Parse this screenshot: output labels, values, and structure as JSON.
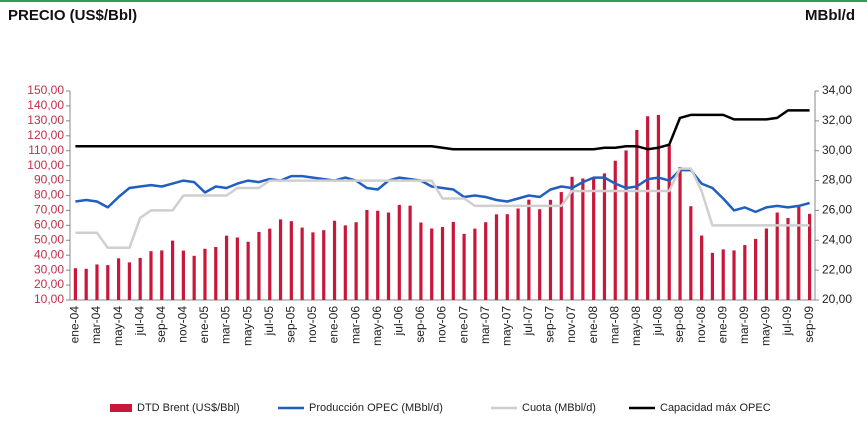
{
  "chart_data": {
    "type": "combo",
    "title": "PRECIO (US$/Bbl)",
    "y2_title": "MBbl/d",
    "categories": [
      "ene-04",
      null,
      "mar-04",
      null,
      "may-04",
      null,
      "jul-04",
      null,
      "sep-04",
      null,
      "nov-04",
      null,
      "ene-05",
      null,
      "mar-05",
      null,
      "may-05",
      null,
      "jul-05",
      null,
      "sep-05",
      null,
      "nov-05",
      null,
      "ene-06",
      null,
      "mar-06",
      null,
      "may-06",
      null,
      "jul-06",
      null,
      "sep-06",
      null,
      "nov-06",
      null,
      "ene-07",
      null,
      "mar-07",
      null,
      "may-07",
      null,
      "jul-07",
      null,
      "sep-07",
      null,
      "nov-07",
      null,
      "ene-08",
      null,
      "mar-08",
      null,
      "may-08",
      null,
      "jul-08",
      null,
      "sep-08",
      null,
      "nov-08",
      null,
      "ene-09",
      null,
      "mar-09",
      null,
      "may-09",
      null,
      "jul-09",
      null,
      "sep-09"
    ],
    "series": [
      {
        "name": "DTD Brent (US$/Bbl)",
        "type": "bar",
        "axis": "y",
        "color": "#c8173a",
        "values": [
          31.3,
          30.9,
          33.8,
          33.4,
          37.9,
          35.2,
          38.2,
          42.7,
          43.2,
          49.8,
          43.1,
          39.6,
          44.3,
          45.5,
          53.1,
          51.9,
          49.0,
          55.6,
          57.8,
          64.0,
          62.8,
          58.5,
          55.3,
          56.8,
          63.1,
          60.0,
          62.1,
          70.3,
          69.8,
          68.6,
          73.7,
          73.2,
          61.9,
          57.9,
          58.9,
          62.3,
          54.3,
          57.8,
          62.1,
          67.4,
          67.5,
          71.3,
          77.2,
          70.8,
          77.1,
          82.3,
          92.5,
          91.4,
          92.0,
          94.8,
          103.3,
          110.2,
          123.9,
          133.1,
          133.9,
          113.9,
          99.1,
          72.8,
          53.2,
          41.6,
          43.9,
          43.2,
          46.8,
          50.9,
          57.9,
          68.6,
          64.9,
          72.5,
          67.7
        ]
      },
      {
        "name": "Producción OPEC (MBbl/d)",
        "type": "line",
        "axis": "y2",
        "color": "#1f5fbf",
        "values": [
          26.6,
          26.7,
          26.6,
          26.2,
          26.9,
          27.5,
          27.6,
          27.7,
          27.6,
          27.8,
          28.0,
          27.9,
          27.2,
          27.6,
          27.5,
          27.8,
          28.0,
          27.9,
          28.1,
          28.0,
          28.3,
          28.3,
          28.2,
          28.1,
          28.0,
          28.2,
          28.0,
          27.5,
          27.4,
          28.0,
          28.2,
          28.1,
          28.0,
          27.6,
          27.5,
          27.4,
          26.9,
          27.0,
          26.9,
          26.7,
          26.6,
          26.8,
          27.0,
          26.9,
          27.4,
          27.6,
          27.5,
          27.9,
          28.2,
          28.2,
          27.8,
          27.5,
          27.6,
          28.1,
          28.2,
          28.0,
          28.7,
          28.7,
          27.8,
          27.5,
          26.8,
          26.0,
          26.2,
          25.9,
          26.2,
          26.3,
          26.2,
          26.3,
          26.5
        ]
      },
      {
        "name": "Cuota (MBbl/d)",
        "type": "line",
        "axis": "y2",
        "color": "#cfcfcf",
        "values": [
          24.5,
          24.5,
          24.5,
          23.5,
          23.5,
          23.5,
          25.5,
          26,
          26,
          26,
          27,
          27,
          27,
          27,
          27,
          27.5,
          27.5,
          27.5,
          28,
          28,
          28,
          28,
          28,
          28,
          28,
          28,
          28,
          28,
          28,
          28,
          28,
          28,
          28,
          28,
          26.8,
          26.8,
          26.8,
          26.3,
          26.3,
          26.3,
          26.3,
          26.3,
          26.3,
          26.3,
          26.3,
          26.3,
          27.3,
          27.3,
          27.3,
          27.3,
          27.3,
          27.3,
          27.3,
          27.3,
          27.3,
          27.3,
          28.8,
          28.8,
          27.3,
          25,
          25,
          25,
          25,
          25,
          25,
          25,
          25,
          25,
          25
        ]
      },
      {
        "name": "Capacidad máx OPEC",
        "type": "line",
        "axis": "y2",
        "color": "#000000",
        "values": [
          30.3,
          30.3,
          30.3,
          30.3,
          30.3,
          30.3,
          30.3,
          30.3,
          30.3,
          30.3,
          30.3,
          30.3,
          30.3,
          30.3,
          30.3,
          30.3,
          30.3,
          30.3,
          30.3,
          30.3,
          30.3,
          30.3,
          30.3,
          30.3,
          30.3,
          30.3,
          30.3,
          30.3,
          30.3,
          30.3,
          30.3,
          30.3,
          30.3,
          30.3,
          30.2,
          30.1,
          30.1,
          30.1,
          30.1,
          30.1,
          30.1,
          30.1,
          30.1,
          30.1,
          30.1,
          30.1,
          30.1,
          30.1,
          30.1,
          30.2,
          30.2,
          30.3,
          30.3,
          30.1,
          30.2,
          30.4,
          32.2,
          32.4,
          32.4,
          32.4,
          32.4,
          32.1,
          32.1,
          32.1,
          32.1,
          32.2,
          32.7,
          32.7,
          32.7
        ]
      }
    ],
    "ylim": [
      10,
      150
    ],
    "yticks": [
      {
        "value": 10,
        "label": "10,00"
      },
      {
        "value": 20,
        "label": "20,00"
      },
      {
        "value": 30,
        "label": "30,00"
      },
      {
        "value": 40,
        "label": "40,00"
      },
      {
        "value": 50,
        "label": "50,00"
      },
      {
        "value": 60,
        "label": "60,00"
      },
      {
        "value": 70,
        "label": "70,00"
      },
      {
        "value": 80,
        "label": "80,00"
      },
      {
        "value": 90,
        "label": "90,00"
      },
      {
        "value": 100,
        "label": "100,00"
      },
      {
        "value": 110,
        "label": "110,00"
      },
      {
        "value": 120,
        "label": "120,00"
      },
      {
        "value": 130,
        "label": "130,00"
      },
      {
        "value": 140,
        "label": "140,00"
      },
      {
        "value": 150,
        "label": "150,00"
      }
    ],
    "y2lim": [
      20,
      34
    ],
    "y2ticks": [
      {
        "value": 20,
        "label": "20,00"
      },
      {
        "value": 22,
        "label": "22,00"
      },
      {
        "value": 24,
        "label": "24,00"
      },
      {
        "value": 26,
        "label": "26,00"
      },
      {
        "value": 28,
        "label": "28,00"
      },
      {
        "value": 30,
        "label": "30,00"
      },
      {
        "value": 32,
        "label": "32,00"
      },
      {
        "value": 34,
        "label": "34,00"
      }
    ],
    "grid": false,
    "legend": "bottom"
  }
}
